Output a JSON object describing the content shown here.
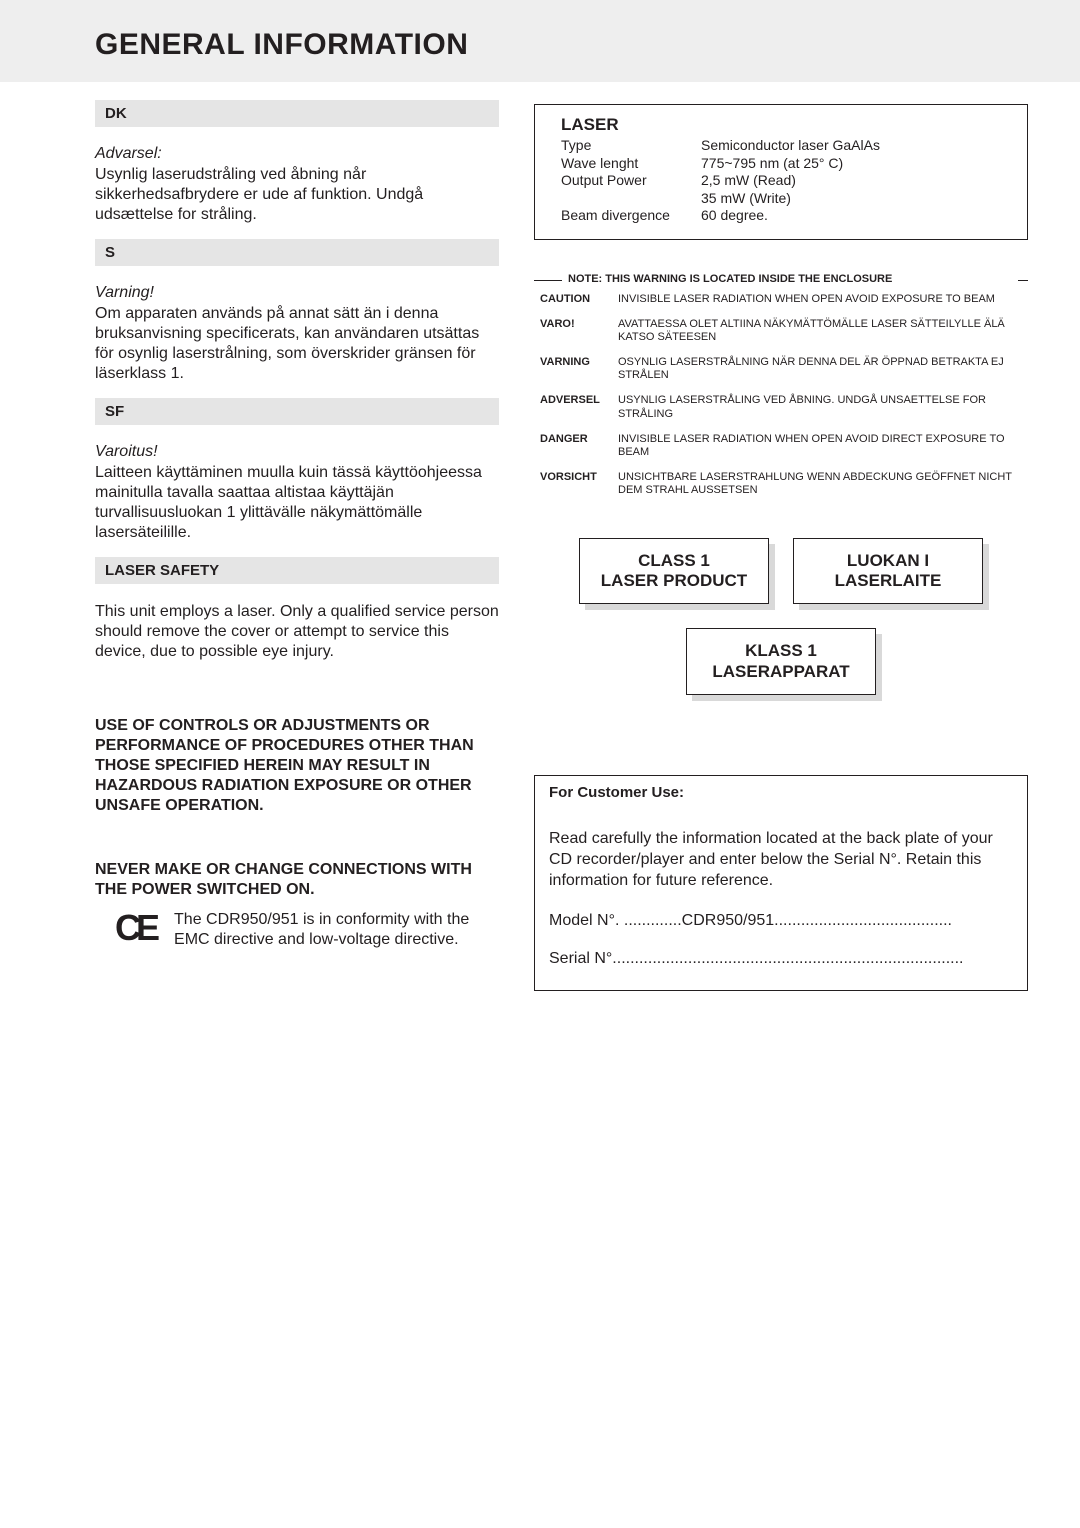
{
  "title": "GENERAL INFORMATION",
  "sections": {
    "dk": {
      "header": "DK",
      "warning_title": "Advarsel:",
      "warning_body": "Usynlig laserudstråling ved åbning når sikkerhedsafbrydere er ude af funktion. Undgå udsættelse for stråling."
    },
    "s": {
      "header": "S",
      "warning_title": "Varning!",
      "warning_body": "Om apparaten används på annat sätt än i denna bruksanvisning specificerats, kan användaren utsättas för osynlig laserstrålning, som överskrider gränsen för läserklass 1."
    },
    "sf": {
      "header": "SF",
      "warning_title": "Varoitus!",
      "warning_body": "Laitteen käyttäminen muulla kuin tässä käyttöohjeessa mainitulla tavalla saattaa altistaa käyttäjän turvallisuusluokan 1 ylittävälle näkymättömälle lasersäteilille."
    },
    "laser_safety": {
      "header": "LASER SAFETY",
      "text": "This unit employs a laser. Only a qualified service person should remove the cover or attempt to service this device, due to possible eye injury."
    },
    "controls_warning": "USE OF CONTROLS OR ADJUSTMENTS OR PERFORMANCE OF PROCEDURES OTHER THAN THOSE SPECIFIED HEREIN MAY RESULT IN HAZARDOUS RADIATION EXPOSURE OR OTHER UNSAFE OPERATION.",
    "power_warning": "NEVER MAKE OR CHANGE CONNECTIONS WITH THE POWER SWITCHED ON.",
    "ce_text": "The CDR950/951 is in conformity with the EMC directive and low-voltage directive."
  },
  "laser_box": {
    "title": "LASER",
    "rows": [
      {
        "label": "Type",
        "value": "Semiconductor laser GaAlAs"
      },
      {
        "label": "Wave lenght",
        "value": "775~795 nm (at 25° C)"
      },
      {
        "label": "Output Power",
        "value": "2,5 mW (Read)"
      },
      {
        "label": "",
        "value": "35 mW (Write)"
      },
      {
        "label": "Beam divergence",
        "value": "60 degree."
      }
    ]
  },
  "enclosure_warning": {
    "title": "NOTE: THIS WARNING IS LOCATED INSIDE THE ENCLOSURE",
    "rows": [
      {
        "lang": "CAUTION",
        "text": "INVISIBLE LASER RADIATION WHEN OPEN AVOID EXPOSURE TO BEAM"
      },
      {
        "lang": "VARO!",
        "text": "AVATTAESSA OLET ALTIINA NÄKYMÄTTÖMÄLLE LASER SÄTTEILYLLE ÄLÄ KATSO SÄTEESEN"
      },
      {
        "lang": "VARNING",
        "text": "OSYNLIG LASERSTRÅLNING NÄR DENNA DEL ÄR ÖPPNAD BETRAKTA EJ STRÅLEN"
      },
      {
        "lang": "ADVERSEL",
        "text": "USYNLIG LASERSTRÅLING VED ÅBNING. UNDGÅ UNSAETTELSE FOR STRÅLING"
      },
      {
        "lang": "DANGER",
        "text": "INVISIBLE LASER RADIATION WHEN OPEN AVOID DIRECT EXPOSURE TO BEAM"
      },
      {
        "lang": "VORSICHT",
        "text": "UNSICHTBARE LASERSTRAHLUNG WENN ABDECKUNG GEÖFFNET NICHT DEM STRAHL AUSSETSEN"
      }
    ]
  },
  "class_labels": {
    "box1_line1": "CLASS 1",
    "box1_line2": "LASER PRODUCT",
    "box2_line1": "LUOKAN I",
    "box2_line2": "LASERLAITE",
    "box3_line1": "KLASS 1",
    "box3_line2": "LASERAPPARAT"
  },
  "customer_box": {
    "header": "For Customer Use:",
    "body": "Read carefully the information located at the back plate of your CD recorder/player and enter below the Serial N°. Retain this information for future reference.",
    "model_line": "Model N°. .............CDR950/951........................................",
    "serial_line": "Serial N°..............................................................................."
  }
}
